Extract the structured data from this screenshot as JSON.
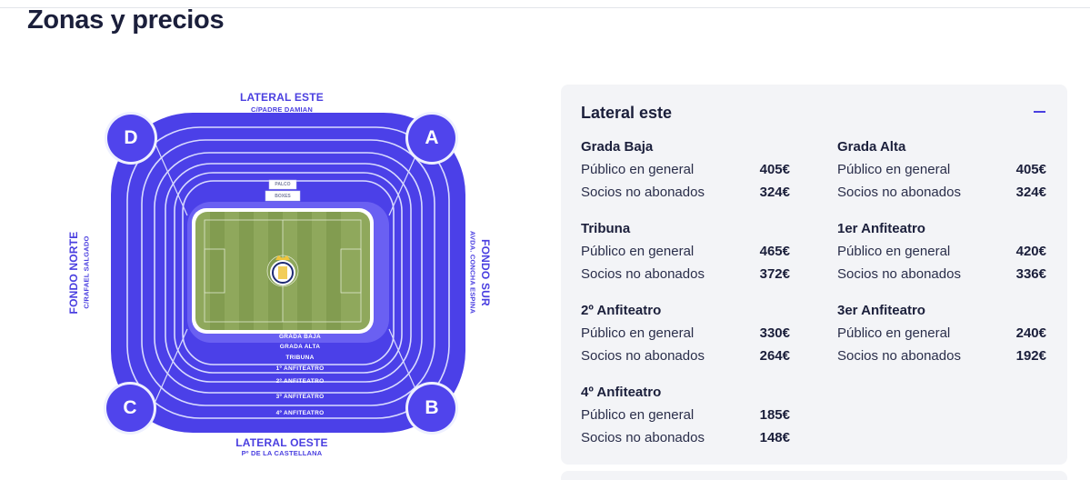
{
  "page": {
    "title": "Zonas y precios"
  },
  "stadium": {
    "sides": {
      "top": {
        "name": "LATERAL ESTE",
        "street": "C/PADRE DAMIAN"
      },
      "bottom": {
        "name": "LATERAL OESTE",
        "street": "Pº DE LA CASTELLANA"
      },
      "left": {
        "name": "FONDO NORTE",
        "street": "C/RAFAEL SALGADO"
      },
      "right": {
        "name": "FONDO SUR",
        "street": "AVDA. CONCHA ESPINA"
      }
    },
    "corners": {
      "top_left": "D",
      "top_right": "A",
      "bottom_left": "C",
      "bottom_right": "B"
    },
    "box_labels": [
      "PALCO",
      "BOXES"
    ],
    "ring_labels": [
      "GRADA BAJA",
      "GRADA ALTA",
      "TRIBUNA",
      "1º ANFITEATRO",
      "2º ANFITEATRO",
      "3º ANFITEATRO",
      "4º ANFITEATRO"
    ],
    "colors": {
      "ring_dark": "#4b40e8",
      "ring_light": "#6a60f2",
      "pitch": "#8fa85c",
      "pitch_stripe": "#829c50"
    }
  },
  "panel": {
    "title": "Lateral este",
    "collapse_icon": "minus-icon",
    "zones": [
      {
        "name": "Grada Baja",
        "rows": [
          {
            "label": "Público en general",
            "price": "405€"
          },
          {
            "label": "Socios no abonados",
            "price": "324€"
          }
        ]
      },
      {
        "name": "Grada Alta",
        "rows": [
          {
            "label": "Público en general",
            "price": "405€"
          },
          {
            "label": "Socios no abonados",
            "price": "324€"
          }
        ]
      },
      {
        "name": "Tribuna",
        "rows": [
          {
            "label": "Público en general",
            "price": "465€"
          },
          {
            "label": "Socios no abonados",
            "price": "372€"
          }
        ]
      },
      {
        "name": "1er Anfiteatro",
        "rows": [
          {
            "label": "Público en general",
            "price": "420€"
          },
          {
            "label": "Socios no abonados",
            "price": "336€"
          }
        ]
      },
      {
        "name": "2º Anfiteatro",
        "rows": [
          {
            "label": "Público en general",
            "price": "330€"
          },
          {
            "label": "Socios no abonados",
            "price": "264€"
          }
        ]
      },
      {
        "name": "3er Anfiteatro",
        "rows": [
          {
            "label": "Público en general",
            "price": "240€"
          },
          {
            "label": "Socios no abonados",
            "price": "192€"
          }
        ]
      },
      {
        "name": "4º Anfiteatro",
        "rows": [
          {
            "label": "Público en general",
            "price": "185€"
          },
          {
            "label": "Socios no abonados",
            "price": "148€"
          }
        ]
      }
    ]
  }
}
